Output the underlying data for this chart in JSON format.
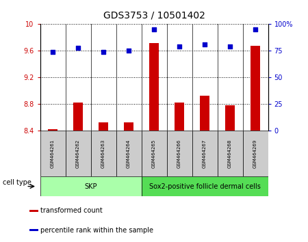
{
  "title": "GDS3753 / 10501402",
  "samples": [
    "GSM464261",
    "GSM464262",
    "GSM464263",
    "GSM464264",
    "GSM464265",
    "GSM464266",
    "GSM464267",
    "GSM464268",
    "GSM464269"
  ],
  "transformed_count": [
    8.42,
    8.82,
    8.52,
    8.53,
    9.72,
    8.82,
    8.93,
    8.78,
    9.68
  ],
  "percentile_rank": [
    74,
    78,
    74,
    75,
    95,
    79,
    81,
    79,
    95
  ],
  "ylim_left": [
    8.4,
    10.0
  ],
  "ylim_right": [
    0,
    100
  ],
  "yticks_left": [
    8.4,
    8.8,
    9.2,
    9.6,
    10.0
  ],
  "yticks_right": [
    0,
    25,
    50,
    75,
    100
  ],
  "ytick_labels_left": [
    "8.4",
    "8.8",
    "9.2",
    "9.6",
    "10"
  ],
  "ytick_labels_right": [
    "0",
    "25",
    "50",
    "75",
    "100%"
  ],
  "bar_color": "#cc0000",
  "dot_color": "#0000cc",
  "cell_type_groups": [
    {
      "label": "SKP",
      "start": 0,
      "end": 4,
      "color": "#aaffaa"
    },
    {
      "label": "Sox2-positive follicle dermal cells",
      "start": 4,
      "end": 9,
      "color": "#55dd55"
    }
  ],
  "cell_type_label": "cell type",
  "legend_items": [
    {
      "label": "transformed count",
      "color": "#cc0000"
    },
    {
      "label": "percentile rank within the sample",
      "color": "#0000cc"
    }
  ],
  "bar_width": 0.4,
  "background_color": "#ffffff",
  "plot_bg_color": "#ffffff",
  "left_tick_color": "#cc0000",
  "right_tick_color": "#0000cc",
  "sample_box_color": "#cccccc",
  "title_fontsize": 10,
  "tick_fontsize": 7,
  "sample_fontsize": 5,
  "legend_fontsize": 7,
  "celltype_fontsize": 7
}
